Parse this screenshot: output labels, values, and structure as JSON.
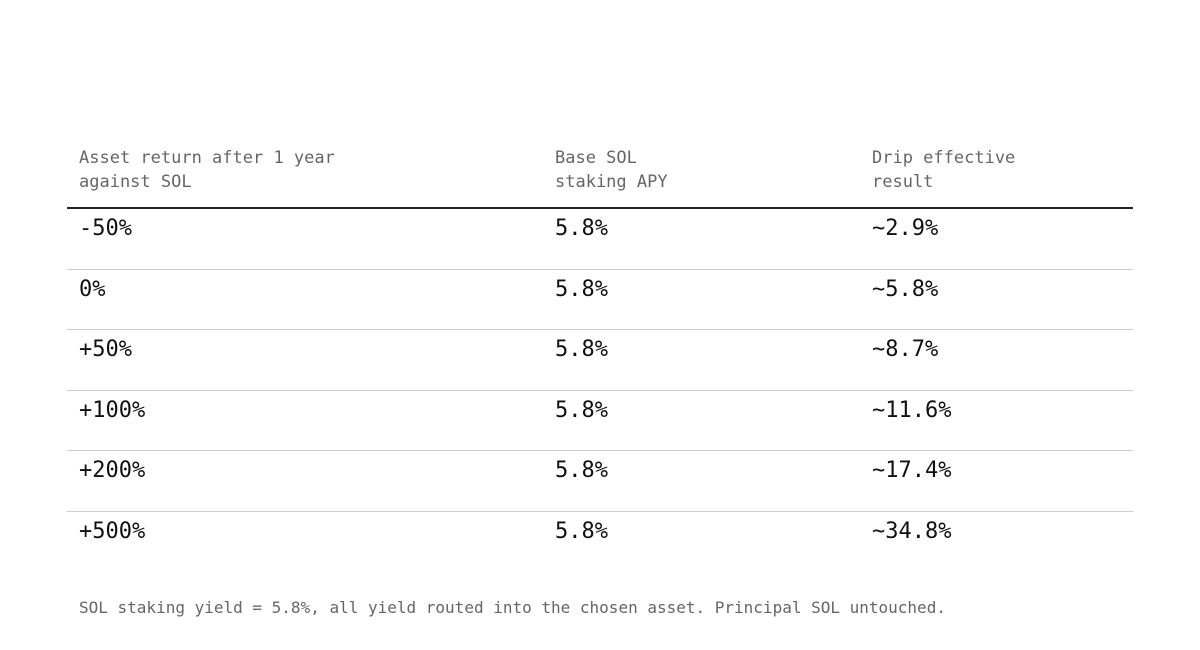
{
  "table": {
    "headers": [
      "Asset return after 1 year\nagainst SOL",
      "Base SOL\nstaking APY",
      "Drip effective\nresult"
    ],
    "rows": [
      [
        "-50%",
        "5.8%",
        "~2.9%"
      ],
      [
        "0%",
        "5.8%",
        "~5.8%"
      ],
      [
        "+50%",
        "5.8%",
        "~8.7%"
      ],
      [
        "+100%",
        "5.8%",
        "~11.6%"
      ],
      [
        "+200%",
        "5.8%",
        "~17.4%"
      ],
      [
        "+500%",
        "5.8%",
        "~34.8%"
      ]
    ]
  },
  "footnote": "SOL staking yield = 5.8%, all yield routed into the chosen asset. Principal SOL untouched."
}
